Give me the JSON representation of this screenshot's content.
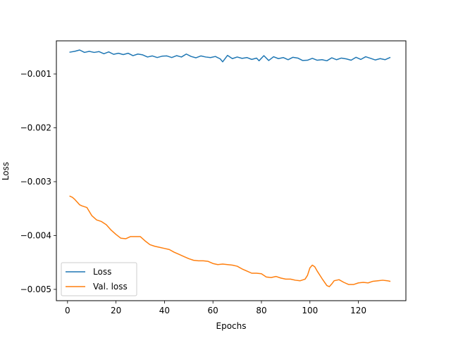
{
  "chart_data": {
    "type": "line",
    "title": "",
    "xlabel": "Epochs",
    "ylabel": "Loss",
    "xlim": [
      -4.6,
      139.6
    ],
    "ylim": [
      -0.00521,
      -0.000385
    ],
    "xticks": [
      0,
      20,
      40,
      60,
      80,
      100,
      120
    ],
    "xtick_labels": [
      "0",
      "20",
      "40",
      "60",
      "80",
      "100",
      "120"
    ],
    "yticks": [
      -0.001,
      -0.002,
      -0.003,
      -0.004,
      -0.005
    ],
    "ytick_labels": [
      "−0.001",
      "−0.002",
      "−0.003",
      "−0.004",
      "−0.005"
    ],
    "grid": false,
    "legend_position": "lower-left",
    "series": [
      {
        "name": "Loss",
        "color": "#1f77b4",
        "x": [
          1,
          3,
          5,
          7,
          9,
          11,
          13,
          15,
          17,
          19,
          21,
          23,
          25,
          27,
          29,
          31,
          33,
          35,
          37,
          39,
          41,
          43,
          45,
          47,
          49,
          51,
          53,
          55,
          57,
          59,
          61,
          63,
          64,
          66,
          68,
          70,
          72,
          74,
          76,
          78,
          79,
          81,
          83,
          85,
          87,
          89,
          91,
          93,
          95,
          97,
          99,
          101,
          103,
          105,
          107,
          109,
          111,
          113,
          115,
          117,
          119,
          121,
          123,
          125,
          127,
          129,
          131,
          133
        ],
        "y": [
          -0.000595,
          -0.00058,
          -0.000555,
          -0.0006,
          -0.00058,
          -0.0006,
          -0.000585,
          -0.000625,
          -0.00059,
          -0.000635,
          -0.000615,
          -0.00064,
          -0.000615,
          -0.00066,
          -0.00063,
          -0.000645,
          -0.000685,
          -0.000665,
          -0.000695,
          -0.00067,
          -0.000665,
          -0.000695,
          -0.00066,
          -0.000685,
          -0.00063,
          -0.000675,
          -0.0007,
          -0.000665,
          -0.000685,
          -0.000695,
          -0.000675,
          -0.00072,
          -0.000775,
          -0.000655,
          -0.000715,
          -0.000685,
          -0.00071,
          -0.000695,
          -0.00073,
          -0.000705,
          -0.000755,
          -0.00066,
          -0.00075,
          -0.00068,
          -0.000715,
          -0.000695,
          -0.000735,
          -0.00069,
          -0.000705,
          -0.00075,
          -0.000745,
          -0.00071,
          -0.000745,
          -0.000735,
          -0.000755,
          -0.0007,
          -0.000735,
          -0.000705,
          -0.00072,
          -0.000745,
          -0.00069,
          -0.00073,
          -0.00068,
          -0.00071,
          -0.00074,
          -0.000715,
          -0.000735,
          -0.000695
        ]
      },
      {
        "name": "Val. loss",
        "color": "#ff7f0e",
        "x": [
          1,
          2,
          3,
          4,
          5,
          6,
          8,
          10,
          12,
          14,
          16,
          18,
          20,
          22,
          24,
          26,
          28,
          30,
          32,
          34,
          36,
          38,
          40,
          42,
          44,
          46,
          48,
          50,
          52,
          54,
          56,
          58,
          60,
          62,
          64,
          66,
          68,
          70,
          72,
          74,
          76,
          78,
          80,
          82,
          84,
          86,
          88,
          90,
          92,
          94,
          96,
          98,
          99,
          100,
          101,
          102,
          103,
          105,
          107,
          108,
          109,
          110,
          112,
          114,
          116,
          118,
          120,
          122,
          124,
          126,
          128,
          130,
          132,
          133
        ],
        "y": [
          -0.00327,
          -0.00329,
          -0.00333,
          -0.00338,
          -0.00343,
          -0.00345,
          -0.00348,
          -0.00363,
          -0.00371,
          -0.00374,
          -0.0038,
          -0.0039,
          -0.00398,
          -0.00405,
          -0.00406,
          -0.00402,
          -0.00402,
          -0.00402,
          -0.0041,
          -0.00417,
          -0.0042,
          -0.00422,
          -0.00424,
          -0.00426,
          -0.00431,
          -0.00435,
          -0.00439,
          -0.00443,
          -0.00446,
          -0.00447,
          -0.00447,
          -0.00448,
          -0.00452,
          -0.00454,
          -0.00453,
          -0.00454,
          -0.00455,
          -0.00457,
          -0.00462,
          -0.00466,
          -0.0047,
          -0.0047,
          -0.00471,
          -0.00477,
          -0.00478,
          -0.00476,
          -0.00479,
          -0.00481,
          -0.00481,
          -0.00483,
          -0.00484,
          -0.00481,
          -0.00474,
          -0.0046,
          -0.00455,
          -0.00458,
          -0.00466,
          -0.0048,
          -0.00493,
          -0.00495,
          -0.0049,
          -0.00484,
          -0.00482,
          -0.00487,
          -0.00491,
          -0.00491,
          -0.00488,
          -0.00487,
          -0.00488,
          -0.00485,
          -0.00484,
          -0.00483,
          -0.00484,
          -0.00485
        ]
      }
    ]
  }
}
